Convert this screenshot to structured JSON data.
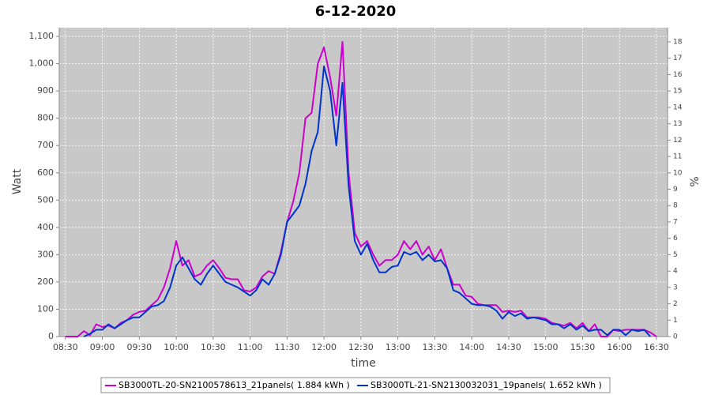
{
  "chart_data": {
    "type": "line",
    "title": "6-12-2020",
    "x_label": "time",
    "y_label": "Watt",
    "y2_label": "%",
    "x": [
      "08:30",
      "08:35",
      "08:40",
      "08:45",
      "08:50",
      "08:55",
      "09:00",
      "09:05",
      "09:10",
      "09:15",
      "09:20",
      "09:25",
      "09:30",
      "09:35",
      "09:40",
      "09:45",
      "09:50",
      "09:55",
      "10:00",
      "10:05",
      "10:10",
      "10:15",
      "10:20",
      "10:25",
      "10:30",
      "10:35",
      "10:40",
      "10:45",
      "10:50",
      "10:55",
      "11:00",
      "11:05",
      "11:10",
      "11:15",
      "11:20",
      "11:25",
      "11:30",
      "11:35",
      "11:40",
      "11:45",
      "11:50",
      "11:55",
      "12:00",
      "12:05",
      "12:10",
      "12:15",
      "12:20",
      "12:25",
      "12:30",
      "12:35",
      "12:40",
      "12:45",
      "12:50",
      "12:55",
      "13:00",
      "13:05",
      "13:10",
      "13:15",
      "13:20",
      "13:25",
      "13:30",
      "13:35",
      "13:40",
      "13:45",
      "13:50",
      "13:55",
      "14:00",
      "14:05",
      "14:10",
      "14:15",
      "14:20",
      "14:25",
      "14:30",
      "14:35",
      "14:40",
      "14:45",
      "14:50",
      "14:55",
      "15:00",
      "15:05",
      "15:10",
      "15:15",
      "15:20",
      "15:25",
      "15:30",
      "15:35",
      "15:40",
      "15:45",
      "15:50",
      "15:55",
      "16:00",
      "16:05",
      "16:10",
      "16:15",
      "16:20",
      "16:25",
      "16:30"
    ],
    "series": [
      {
        "name": "SB3000TL-20-SN2100578613_21panels( 1.884 kWh )",
        "color": "#cc00cc",
        "values": [
          0,
          0,
          0,
          20,
          5,
          45,
          35,
          40,
          30,
          50,
          60,
          80,
          90,
          95,
          115,
          135,
          180,
          250,
          350,
          260,
          280,
          220,
          230,
          260,
          280,
          250,
          215,
          210,
          210,
          170,
          165,
          180,
          220,
          240,
          230,
          310,
          420,
          495,
          600,
          800,
          820,
          1000,
          1060,
          950,
          810,
          1080,
          600,
          380,
          330,
          350,
          300,
          260,
          280,
          280,
          300,
          350,
          320,
          350,
          300,
          330,
          280,
          320,
          250,
          190,
          190,
          150,
          145,
          120,
          115,
          115,
          115,
          90,
          95,
          90,
          95,
          70,
          70,
          70,
          65,
          50,
          45,
          40,
          50,
          30,
          50,
          20,
          45,
          0,
          0,
          25,
          20,
          25,
          25,
          25,
          25,
          15,
          0
        ]
      },
      {
        "name": "SB3000TL-21-SN2130032031_19panels( 1.652 kWh )",
        "color": "#0033cc",
        "values": [
          null,
          null,
          null,
          0,
          10,
          25,
          25,
          45,
          30,
          45,
          60,
          70,
          70,
          90,
          110,
          115,
          130,
          180,
          260,
          290,
          250,
          210,
          190,
          230,
          260,
          230,
          200,
          190,
          180,
          165,
          150,
          170,
          210,
          190,
          230,
          300,
          420,
          450,
          480,
          560,
          680,
          750,
          990,
          900,
          700,
          930,
          550,
          350,
          300,
          340,
          280,
          235,
          235,
          255,
          260,
          310,
          300,
          310,
          280,
          300,
          275,
          280,
          250,
          170,
          160,
          140,
          120,
          115,
          115,
          110,
          95,
          65,
          90,
          75,
          85,
          65,
          70,
          65,
          60,
          45,
          45,
          30,
          45,
          25,
          40,
          20,
          25,
          25,
          5,
          25,
          25,
          5,
          25,
          20,
          25,
          0,
          null
        ]
      }
    ],
    "xlim": [
      "08:25",
      "16:39"
    ],
    "xticks": [
      "08:30",
      "09:00",
      "09:30",
      "10:00",
      "10:30",
      "11:00",
      "11:30",
      "12:00",
      "12:30",
      "13:00",
      "13:30",
      "14:00",
      "14:30",
      "15:00",
      "15:30",
      "16:00",
      "16:30"
    ],
    "ylim": [
      0,
      1132
    ],
    "yticks": [
      0,
      100,
      200,
      300,
      400,
      500,
      600,
      700,
      800,
      900,
      {
        "value": 1000,
        "label": "1,000"
      },
      {
        "value": 1100,
        "label": "1,100"
      }
    ],
    "y2lim": [
      0,
      18.87
    ],
    "y2ticks": [
      0,
      1,
      2,
      3,
      4,
      5,
      6,
      7,
      8,
      9,
      10,
      11,
      12,
      13,
      14,
      15,
      16,
      17,
      18
    ],
    "grid": true,
    "legend": "bottom"
  }
}
